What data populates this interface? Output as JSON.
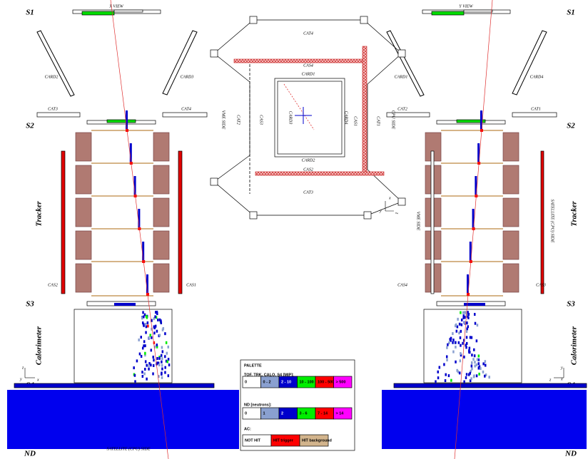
{
  "left_view": {
    "title": "X VIEW",
    "planes": [
      "S1",
      "S2",
      "S3",
      "S4",
      "ND"
    ],
    "tracker": "Tracker",
    "calorimeter": "Calorimeter",
    "card_left": "CARD2",
    "card_right": "CARD3",
    "cat_left": "CAT3",
    "cat_right": "CAT4",
    "cas_left": "CAS2",
    "cas_right": "CAS1",
    "bottom": "SATELLITE (CPU) SIDE",
    "axes": [
      "z",
      "y",
      "x"
    ]
  },
  "right_view": {
    "title": "Y VIEW",
    "planes": [
      "S1",
      "S2",
      "S3",
      "S4",
      "ND"
    ],
    "tracker": "Tracker",
    "calorimeter": "Calorimeter",
    "card_left": "CARD1",
    "card_right": "CARD4",
    "cat_left": "CAT2",
    "cat_right": "CAT1",
    "cas_left": "CAS4",
    "cas_right": "CAS3",
    "side_left": "VME SIDE",
    "side_right": "SATELLITE (CPU) SIDE",
    "axes": [
      "y",
      "x",
      "z"
    ]
  },
  "top_view": {
    "labels": [
      "CAT4",
      "CAS4",
      "CARD1",
      "CAT2",
      "CAS3",
      "CARD3",
      "CARD4",
      "CAS1",
      "CAT1",
      "CARD2",
      "CAS2",
      "CAT3",
      "VME SIDE",
      "CPU SIDE"
    ],
    "axes": [
      "x",
      "y",
      "z"
    ]
  },
  "palette": {
    "title": "PALETTE",
    "groups": [
      {
        "label": "TOF, TRK, CALO, S4 [MIP]:",
        "items": [
          "0",
          "0 - 2",
          "2 - 10",
          "10 - 100",
          "100 - 500",
          "> 500"
        ]
      },
      {
        "label": "ND [neutrons]:",
        "items": [
          "0",
          "1",
          "2",
          "3 - 6",
          "7 - 14",
          "> 14"
        ]
      },
      {
        "label": "AC:",
        "items": [
          "NOT HIT",
          "HIT trigger",
          "HIT background"
        ]
      }
    ]
  }
}
